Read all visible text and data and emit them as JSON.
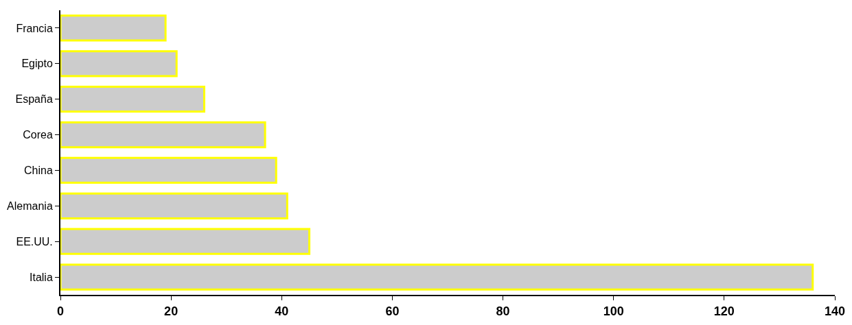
{
  "chart_data": {
    "type": "bar",
    "orientation": "horizontal",
    "categories": [
      "Francia",
      "Egipto",
      "España",
      "Corea",
      "China",
      "Alemania",
      "EE.UU.",
      "Italia"
    ],
    "values": [
      19,
      21,
      26,
      37,
      39,
      41,
      45,
      136
    ],
    "color": "#cccccc",
    "xlim": [
      0,
      140
    ],
    "xticks": [
      0,
      20,
      40,
      60,
      80,
      100,
      120,
      140
    ]
  }
}
